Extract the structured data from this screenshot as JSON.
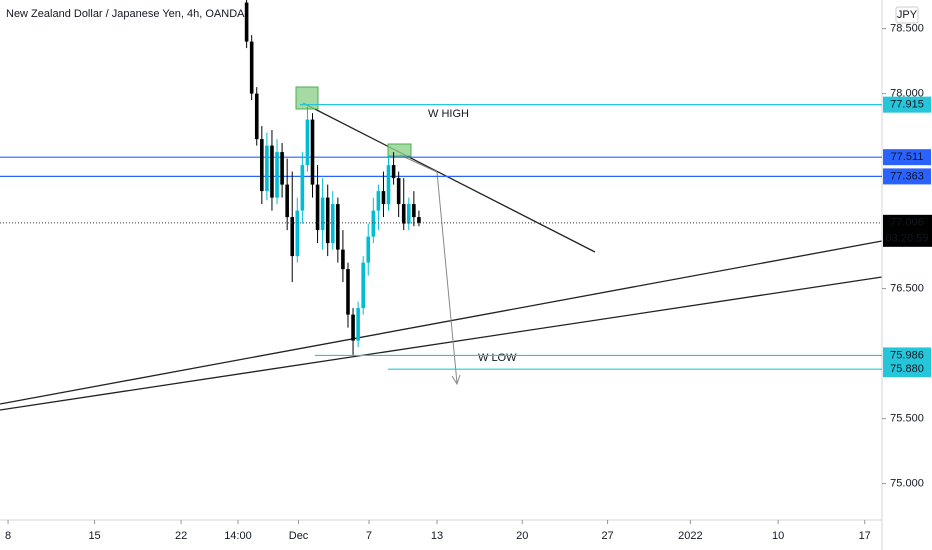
{
  "chart_data": {
    "type": "candlestick",
    "title": "New Zealand Dollar / Japanese Yen, 4h, OANDA",
    "currency": "JPY",
    "countdown": "03:20:59",
    "xlim": [
      7.35,
      78.7
    ],
    "ylim": [
      74.72,
      78.72
    ],
    "xticks": [
      8,
      15,
      22,
      {
        "value": 26.6,
        "label": "14:00"
      },
      {
        "value": 31.5,
        "label": "Dec"
      },
      {
        "value": 37.2,
        "label": "7"
      },
      {
        "value": 42.7,
        "label": "13"
      },
      {
        "value": 49.6,
        "label": "20"
      },
      {
        "value": 56.5,
        "label": "27"
      },
      {
        "value": 63.2,
        "label": "2022"
      },
      {
        "value": 70.3,
        "label": "10"
      },
      {
        "value": 77.3,
        "label": "17"
      }
    ],
    "yticks": [
      {
        "value": 78.5,
        "label": "78.500"
      },
      {
        "value": 78,
        "label": "78.000"
      },
      {
        "value": 76.5,
        "label": "76.500"
      },
      {
        "value": 75.5,
        "label": "75.500"
      },
      {
        "value": 75,
        "label": "75.000"
      }
    ],
    "up_color": "#00bcd4",
    "down_color": "#000000",
    "candles": {
      "x": [
        27.3,
        27.71,
        28.12,
        28.53,
        28.94,
        29.35,
        29.76,
        30.17,
        30.58,
        30.99,
        31.4,
        31.81,
        32.22,
        32.63,
        33.04,
        33.45,
        33.86,
        34.27,
        34.68,
        35.09,
        35.5,
        35.91,
        36.32,
        36.73,
        37.14,
        37.55,
        37.96,
        38.37,
        38.78,
        39.19,
        39.6,
        40.01,
        40.42,
        40.83,
        41.24
      ],
      "open": [
        78.7,
        78.4,
        78.0,
        77.65,
        77.25,
        77.6,
        77.2,
        77.55,
        77.3,
        77.05,
        76.75,
        77.1,
        77.45,
        77.8,
        77.3,
        76.95,
        77.2,
        76.85,
        77.15,
        76.8,
        76.65,
        76.3,
        76.1,
        76.35,
        76.7,
        76.9,
        77.1,
        77.25,
        77.15,
        77.45,
        77.35,
        77.15,
        77.0,
        77.15,
        77.05
      ],
      "high": [
        78.72,
        78.45,
        78.05,
        77.75,
        77.7,
        77.72,
        77.65,
        77.62,
        77.5,
        77.4,
        77.2,
        77.55,
        77.9,
        77.85,
        77.45,
        77.35,
        77.3,
        77.25,
        77.2,
        76.95,
        76.7,
        76.35,
        76.4,
        76.75,
        77.0,
        77.2,
        77.3,
        77.4,
        77.52,
        77.55,
        77.4,
        77.35,
        77.2,
        77.25,
        77.1
      ],
      "low": [
        78.35,
        77.95,
        77.6,
        77.15,
        77.18,
        77.1,
        77.15,
        77.2,
        76.95,
        76.55,
        76.7,
        77.0,
        77.4,
        77.2,
        76.85,
        76.8,
        76.75,
        76.8,
        76.7,
        76.55,
        76.2,
        75.99,
        76.05,
        76.3,
        76.6,
        76.85,
        76.95,
        77.05,
        77.1,
        77.3,
        77.05,
        76.95,
        76.95,
        76.98,
        76.98
      ],
      "close": [
        78.4,
        78.0,
        77.65,
        77.25,
        77.6,
        77.2,
        77.55,
        77.3,
        77.05,
        76.75,
        77.1,
        77.45,
        77.8,
        77.3,
        76.95,
        77.2,
        76.85,
        77.15,
        76.8,
        76.65,
        76.3,
        76.1,
        76.35,
        76.7,
        76.9,
        77.1,
        77.25,
        77.15,
        77.45,
        77.35,
        77.15,
        77.0,
        77.15,
        77.05,
        77.006
      ]
    },
    "levels": [
      {
        "price": 77.915,
        "color": "#26c6da"
      },
      {
        "price": 77.511,
        "color": "#2962ff"
      },
      {
        "price": 77.363,
        "color": "#2962ff"
      },
      {
        "price": 75.986,
        "color": "#26c6da"
      },
      {
        "price": {
          "value": 75.88,
          "label": "75.880"
        },
        "color": "#26c6da"
      }
    ],
    "last_price": 77.006,
    "annotations": [
      "W HIGH",
      "W LOW"
    ]
  }
}
